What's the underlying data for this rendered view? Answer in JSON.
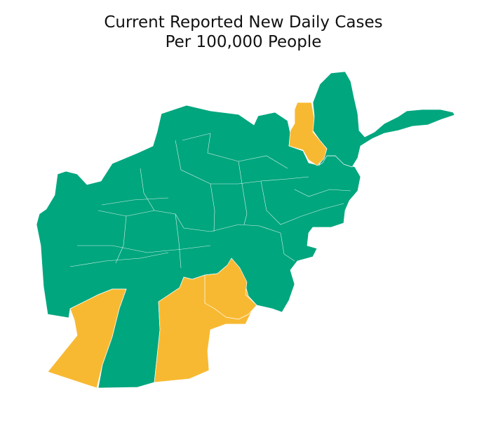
{
  "title_line1": "Current Reported New Daily Cases",
  "title_line2": "Per 100,000 People",
  "colors": {
    "low": "#00a67e",
    "high": "#f8b932",
    "boundary": "#ffffff",
    "background": "#ffffff"
  },
  "provinces": [
    {
      "id": "north-west-center-group",
      "category": "low"
    },
    {
      "id": "badakhshan-east",
      "category": "low"
    },
    {
      "id": "takhar",
      "category": "high"
    },
    {
      "id": "farah",
      "category": "high"
    },
    {
      "id": "nimroz-helmand-west",
      "category": "low"
    },
    {
      "id": "helmand",
      "category": "high"
    },
    {
      "id": "kandahar",
      "category": "high"
    }
  ]
}
